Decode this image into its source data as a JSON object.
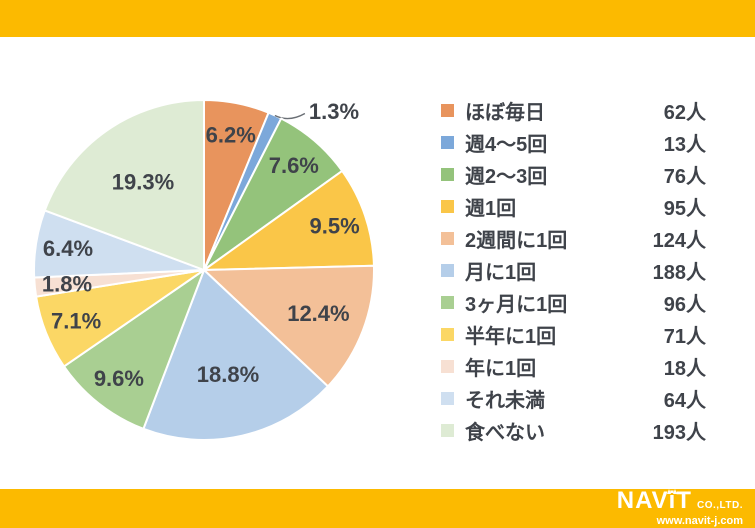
{
  "page": {
    "background": "#FFFFFF",
    "frame_color": "#FCBA00",
    "text_color": "#3F434A"
  },
  "chart_data": {
    "type": "pie",
    "title": "",
    "unit": "人",
    "total": 1000,
    "start_angle_deg": 0,
    "direction": "clockwise",
    "legend_position": "right",
    "label_color": "#3F434A",
    "items": [
      {
        "label": "ほぼ毎日",
        "value": 62,
        "count_label": "62人",
        "percent_label": "6.2%",
        "color": "#E8945D"
      },
      {
        "label": "週4〜5回",
        "value": 13,
        "count_label": "13人",
        "percent_label": "1.3%",
        "color": "#7CA8DA",
        "label_outside": true
      },
      {
        "label": "週2〜3回",
        "value": 76,
        "count_label": "76人",
        "percent_label": "7.6%",
        "color": "#94C37B"
      },
      {
        "label": "週1回",
        "value": 95,
        "count_label": "95人",
        "percent_label": "9.5%",
        "color": "#FAC648"
      },
      {
        "label": "2週間に1回",
        "value": 124,
        "count_label": "124人",
        "percent_label": "12.4%",
        "color": "#F3C098"
      },
      {
        "label": "月に1回",
        "value": 188,
        "count_label": "188人",
        "percent_label": "18.8%",
        "color": "#B5CEE9"
      },
      {
        "label": "3ヶ月に1回",
        "value": 96,
        "count_label": "96人",
        "percent_label": "9.6%",
        "color": "#A9CF92"
      },
      {
        "label": "半年に1回",
        "value": 71,
        "count_label": "71人",
        "percent_label": "7.1%",
        "color": "#FBD765"
      },
      {
        "label": "年に1回",
        "value": 18,
        "count_label": "18人",
        "percent_label": "1.8%",
        "color": "#F7E0D3"
      },
      {
        "label": "それ未満",
        "value": 64,
        "count_label": "64人",
        "percent_label": "6.4%",
        "color": "#CFDFF0"
      },
      {
        "label": "食べない",
        "value": 193,
        "count_label": "193人",
        "percent_label": "19.3%",
        "color": "#DEEBD4"
      }
    ]
  },
  "footer": {
    "brand_part1": "NAV",
    "brand_i": "i",
    "brand_part2": "T",
    "brand_suffix": "CO.,LTD.",
    "website": "www.navit-j.com"
  }
}
